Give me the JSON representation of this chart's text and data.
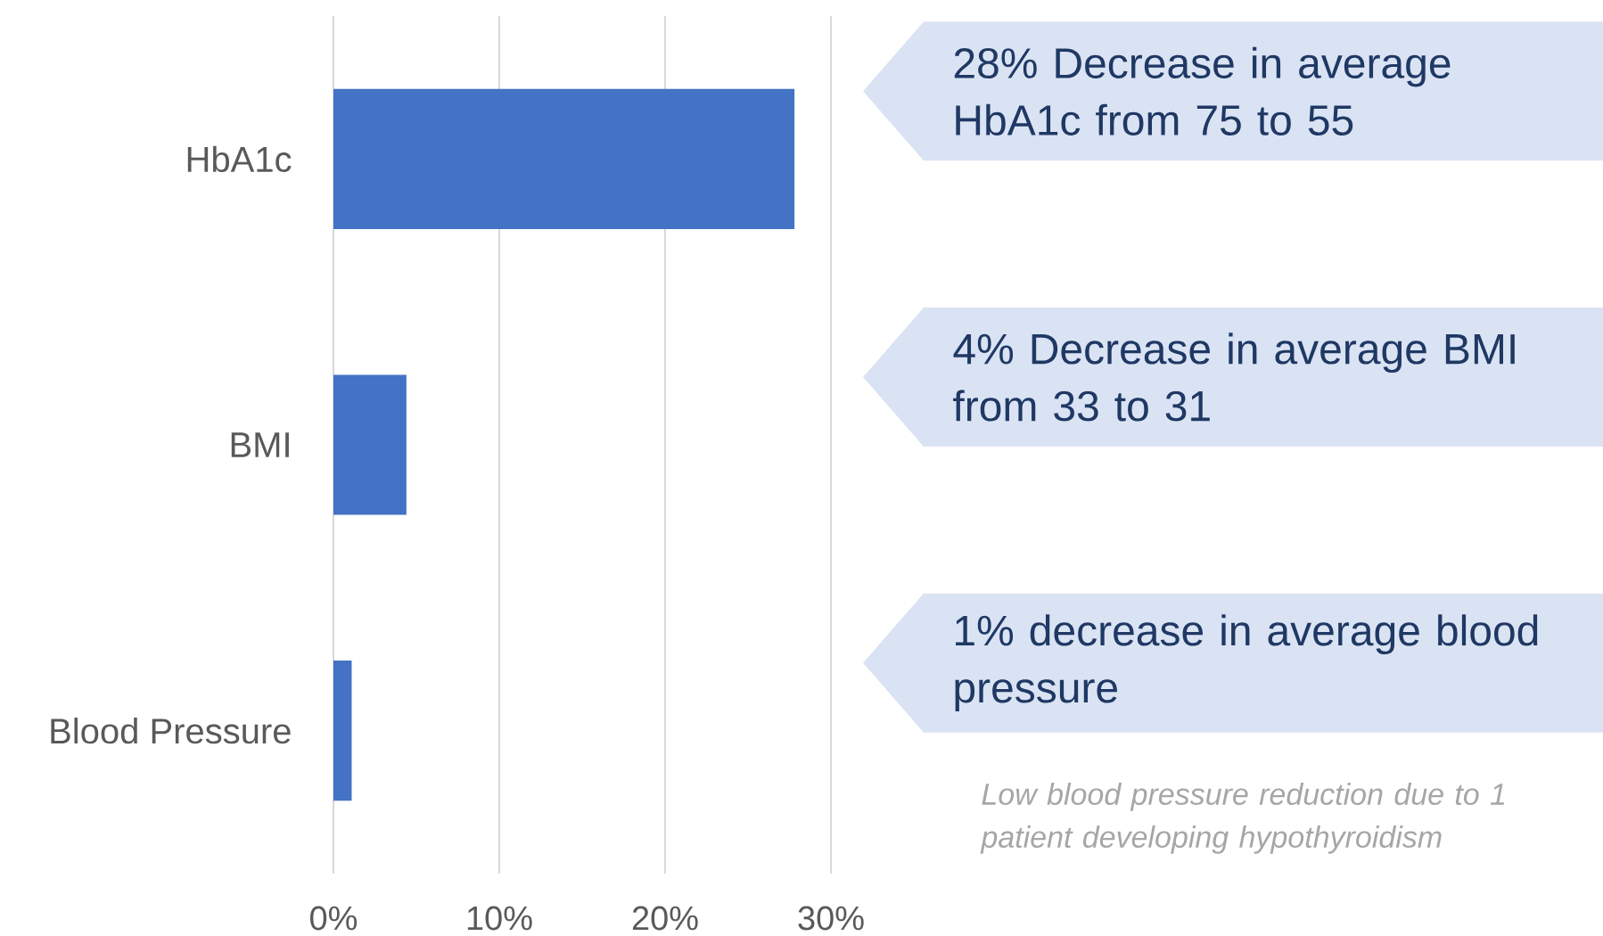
{
  "chart_data": {
    "type": "bar",
    "orientation": "horizontal",
    "categories": [
      "HbA1c",
      "BMI",
      "Blood Pressure"
    ],
    "values": [
      27.8,
      4.4,
      1.1
    ],
    "color": "#4472c4",
    "xlim": [
      0,
      30
    ],
    "xticks": [
      {
        "value": 0,
        "label": "0%"
      },
      {
        "value": 10,
        "label": "10%"
      },
      {
        "value": 20,
        "label": "20%"
      },
      {
        "value": 30,
        "label": "30%"
      }
    ],
    "grid": "x",
    "annotations": [
      "28% Decrease in average HbA1c from 75 to 55",
      "4% Decrease in average BMI from 33 to 31",
      "1% decrease in average blood pressure",
      "Low blood pressure reduction due to 1 patient developing hypothyroidism"
    ]
  }
}
